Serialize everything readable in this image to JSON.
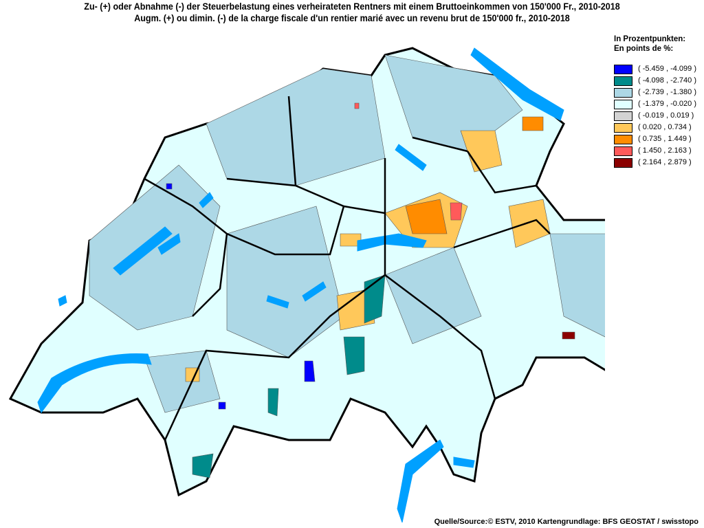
{
  "title": {
    "line1": "Zu- (+) oder Abnahme (-) der Steuerbelastung eines verheirateten Rentners mit einem Bruttoeinkommen von 150'000 Fr., 2010-2018",
    "line2": "Augm. (+) ou dimin. (-) de la charge fiscale d'un rentier marié avec un revenu brut de 150'000 fr., 2010-2018"
  },
  "legend": {
    "heading1": "In Prozentpunkten:",
    "heading2": "En points de %:",
    "classes": [
      {
        "label": "( -5.459 , -4.099 )",
        "color": "#0000ff"
      },
      {
        "label": "( -4.098 , -2.740 )",
        "color": "#008b8b"
      },
      {
        "label": "( -2.739 , -1.380 )",
        "color": "#add8e6"
      },
      {
        "label": "( -1.379 , -0.020 )",
        "color": "#e0ffff"
      },
      {
        "label": "( -0.019 , 0.019 )",
        "color": "#d3d3d3"
      },
      {
        "label": "( 0.020 , 0.734 )",
        "color": "#ffc85a"
      },
      {
        "label": "( 0.735 , 1.449 )",
        "color": "#ff8c00"
      },
      {
        "label": "( 1.450 , 2.163 )",
        "color": "#ff5a5a"
      },
      {
        "label": "( 2.164 , 2.879 )",
        "color": "#8b0000"
      }
    ]
  },
  "lake_color": "#00a0ff",
  "source": "Quelle/Source:© ESTV, 2010 Kartengrundlage: BFS GEOSTAT / swisstopo"
}
